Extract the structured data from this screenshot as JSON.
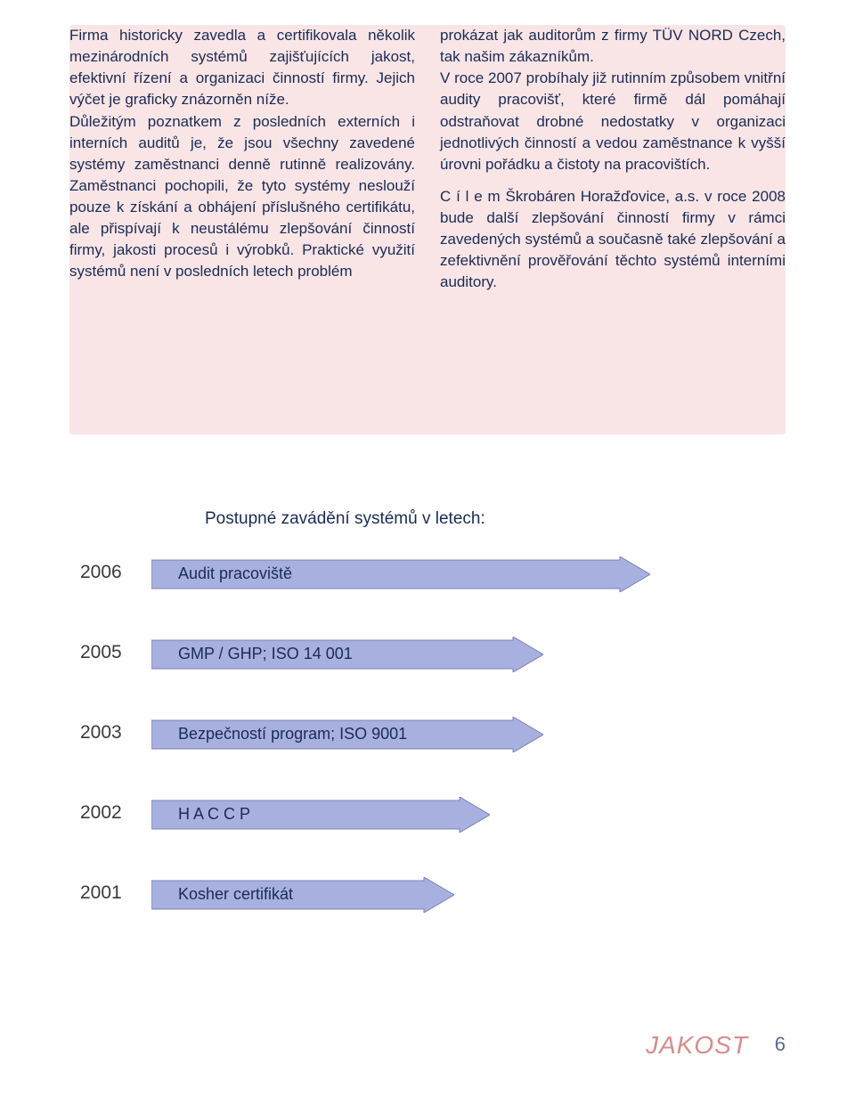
{
  "text_box": {
    "background_color": "#f9e5e5",
    "text_color": "#1a2b56",
    "font_size_pt": 13,
    "left_column": "Firma historicky zavedla a certifikovala několik mezinárodních systémů zajišťujících jakost, efektivní řízení a organizaci činností firmy. Jejich výčet je graficky znázorněn níže.\nDůležitým poznatkem z posledních externích i interních auditů je, že jsou všechny zavedené systémy zaměstnanci denně rutinně realizovány. Zaměstnanci pochopili, že tyto systémy neslouží pouze k získání a obhájení příslušného certifikátu, ale přispívají k neustálému zlepšování činností firmy, jakosti procesů i výrobků. Praktické využití systémů není v posledních letech problém",
    "right_column": "prokázat jak auditorům z firmy TÜV NORD Czech, tak našim zákazníkům.\nV roce 2007 probíhaly již rutinním způsobem vnitřní audity pracovišť, které firmě dál pomáhají odstraňovat drobné nedostatky v organizaci jednotlivých činností a vedou zaměstnance k vyšší úrovni pořádku a čistoty na pracovištích.\n\nC í l e m  Škrobáren Horažďovice, a.s. v roce 2008 bude další zlepšování činností firmy v rámci zavedených systémů a současně také zlepšování a zefektivnění prověřování těchto systémů interními auditory."
  },
  "timeline": {
    "title": "Postupné zavádění systémů v letech:",
    "title_color": "#1a2b56",
    "title_font_size_pt": 14,
    "arrow_fill": "#a8b0e0",
    "arrow_stroke": "#7a82b8",
    "year_color": "#3a3a3a",
    "label_color": "#1a2b56",
    "rows": [
      {
        "year": "2006",
        "label": "Audit pracoviště",
        "arrow_width": 560
      },
      {
        "year": "2005",
        "label": "GMP / GHP; ISO 14 001",
        "arrow_width": 440
      },
      {
        "year": "2003",
        "label": "Bezpečností program; ISO 9001",
        "arrow_width": 440
      },
      {
        "year": "2002",
        "label": "H A C C P",
        "arrow_width": 380
      },
      {
        "year": "2001",
        "label": "Kosher certifikát",
        "arrow_width": 340
      }
    ],
    "arrow_height": 40,
    "row_spacing": 90
  },
  "footer": {
    "section_label": "JAKOST",
    "section_color": "#d98c8c",
    "page_number": "6",
    "page_number_color": "#5a6a8a",
    "page_bg_color": "#e8e0f0"
  }
}
